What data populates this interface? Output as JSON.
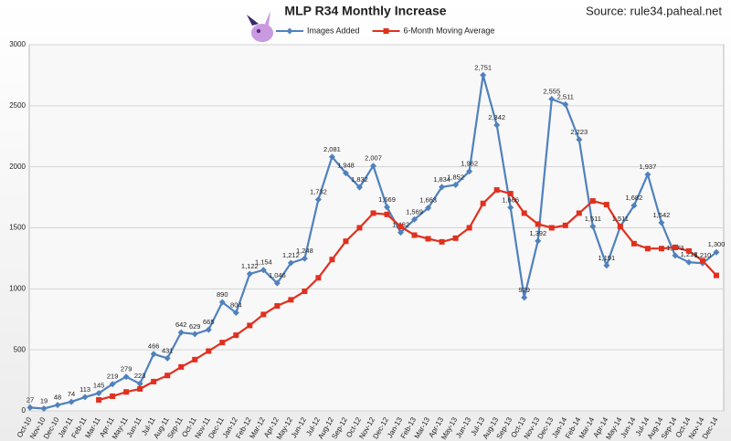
{
  "chart_data": {
    "type": "line",
    "title": "MLP R34 Monthly Increase",
    "subtitle": "Source: rule34.paheal.net",
    "categories": [
      "Oct-10",
      "Nov-10",
      "Dec-10",
      "Jan-11",
      "Feb-11",
      "Mar-11",
      "Apr-11",
      "May-11",
      "Jun-11",
      "Jul-11",
      "Aug-11",
      "Sep-11",
      "Oct-11",
      "Nov-11",
      "Dec-11",
      "Jan-12",
      "Feb-12",
      "Mar-12",
      "Apr-12",
      "May-12",
      "Jun-12",
      "Jul-12",
      "Aug-12",
      "Sep-12",
      "Oct-12",
      "Nov-12",
      "Dec-12",
      "Jan-13",
      "Feb-13",
      "Mar-13",
      "Apr-13",
      "May-13",
      "Jun-13",
      "Jul-13",
      "Aug-13",
      "Sep-13",
      "Oct-13",
      "Nov-13",
      "Dec-13",
      "Jan-14",
      "Feb-14",
      "Mar-14",
      "Apr-14",
      "May-14",
      "Jun-14",
      "Jul-14",
      "Aug-14",
      "Sep-14",
      "Oct-14",
      "Nov-14",
      "Dec-14"
    ],
    "series": [
      {
        "name": "Images Added",
        "color": "#4f81bd",
        "marker": "diamond",
        "values": [
          27,
          19,
          48,
          74,
          113,
          145,
          219,
          279,
          223,
          466,
          431,
          642,
          629,
          665,
          890,
          804,
          1122,
          1154,
          1046,
          1212,
          1248,
          1732,
          2081,
          1948,
          1832,
          2007,
          1669,
          1462,
          1569,
          1663,
          1834,
          1852,
          1962,
          2751,
          2342,
          1666,
          929,
          1392,
          2555,
          2511,
          2223,
          1511,
          1191,
          1511,
          1682,
          1937,
          1542,
          1273,
          1218,
          1210,
          1300
        ],
        "value_labels": [
          "27",
          "19",
          "48",
          "74",
          "113",
          "145",
          "219",
          "279",
          "223",
          "466",
          "431",
          "642",
          "629",
          "665",
          "890",
          "804",
          "1,122",
          "1,154",
          "1,046",
          "1,212",
          "1,248",
          "1,732",
          "2,081",
          "1,948",
          "1,832",
          "2,007",
          "1,669",
          "1,462",
          "1,569",
          "1,663",
          "1,834",
          "1,852",
          "1,962",
          "2,751",
          "2,342",
          "1,666",
          "929",
          "1,392",
          "2,555",
          "2,511",
          "2,223",
          "1,511",
          "1,191",
          "1,511",
          "1,682",
          "1,937",
          "1,542",
          "1,273",
          "1,218",
          "1,210",
          "1,300"
        ]
      },
      {
        "name": "6-Month Moving Average",
        "color": "#e0301e",
        "marker": "square",
        "values": [
          null,
          null,
          null,
          null,
          null,
          90,
          120,
          155,
          180,
          240,
          290,
          360,
          420,
          490,
          560,
          620,
          700,
          790,
          860,
          910,
          980,
          1090,
          1240,
          1390,
          1500,
          1620,
          1610,
          1510,
          1440,
          1410,
          1385,
          1415,
          1500,
          1700,
          1810,
          1780,
          1620,
          1530,
          1500,
          1520,
          1620,
          1720,
          1690,
          1510,
          1370,
          1330,
          1330,
          1340,
          1310,
          1230,
          1110
        ]
      }
    ],
    "ylim": [
      0,
      3000
    ],
    "yticks": [
      0,
      500,
      1000,
      1500,
      2000,
      2500,
      3000
    ],
    "grid": true
  }
}
